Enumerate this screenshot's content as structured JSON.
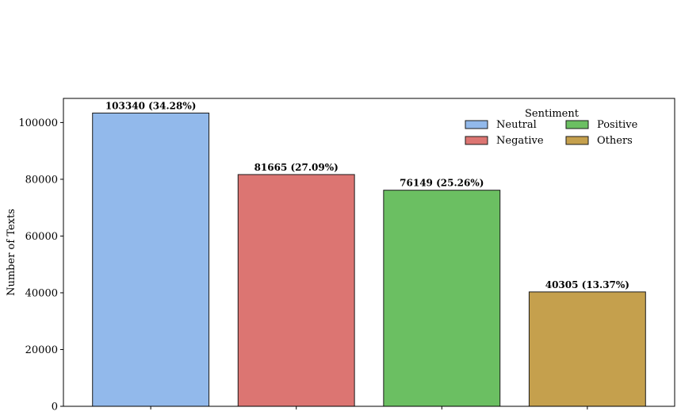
{
  "chart_data": {
    "type": "bar",
    "categories": [
      "Neutral",
      "Negative",
      "Positive",
      "Others"
    ],
    "values": [
      103340,
      81665,
      76149,
      40305
    ],
    "data_labels": [
      "103340 (34.28%)",
      "81665 (27.09%)",
      "76149 (25.26%)",
      "40305 (13.37%)"
    ],
    "colors": [
      "#92b9eb",
      "#dc7572",
      "#6bbf62",
      "#c5a04d"
    ],
    "title": "",
    "xlabel": "",
    "ylabel": "Number of Texts",
    "ylim": [
      0,
      108500
    ],
    "yticks": [
      0,
      20000,
      40000,
      60000,
      80000,
      100000
    ],
    "ytick_labels": [
      "0",
      "20000",
      "40000",
      "60000",
      "80000",
      "100000"
    ],
    "xtick_labels_visible": false,
    "grid": false,
    "legend": {
      "title": "Sentiment",
      "placement": "top-right",
      "columns": 2,
      "entries": [
        "Neutral",
        "Positive",
        "Negative",
        "Others"
      ]
    }
  }
}
